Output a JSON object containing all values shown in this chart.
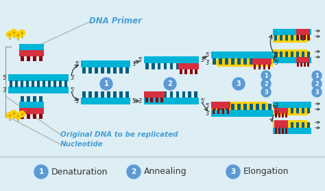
{
  "background_color": "#ddeef5",
  "legend_items": [
    {
      "number": "1",
      "label": "Denaturation",
      "color": "#5b9bd5"
    },
    {
      "number": "2",
      "label": "Annealing",
      "color": "#5b9bd5"
    },
    {
      "number": "3",
      "label": "Elongation",
      "color": "#5b9bd5"
    }
  ],
  "ann_primer": {
    "text": "DNA Primer",
    "color": "#4a9fd4",
    "fontsize": 8.5
  },
  "ann_orig": {
    "text": "Original DNA to be replicated",
    "color": "#4a9fd4",
    "fontsize": 7.5
  },
  "ann_nucl": {
    "text": "Nucleotide",
    "color": "#4a9fd4",
    "fontsize": 7.5
  },
  "cyan_color": "#00b4d8",
  "yellow_color": "#ffd000",
  "red_color": "#d63040",
  "dark_color": "#222222",
  "circle_color": "#5b9bd5",
  "teeth_color": "#006080",
  "label_fontsize": 5.5
}
